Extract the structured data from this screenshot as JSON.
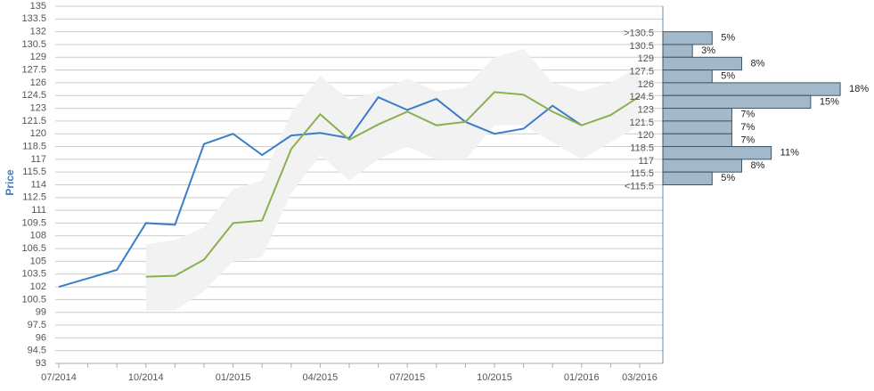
{
  "chart_data": {
    "type": "line",
    "y_label": "Price",
    "categories": [
      "07/2014",
      null,
      null,
      "10/2014",
      null,
      null,
      "01/2015",
      null,
      null,
      "04/2015",
      null,
      null,
      "07/2015",
      null,
      null,
      "10/2015",
      null,
      null,
      "01/2016",
      null,
      "03/2016"
    ],
    "series": [
      {
        "color": "#3a7dc9",
        "values": [
          102,
          103,
          104,
          109.5,
          109.3,
          118.8,
          120,
          117.5,
          119.8,
          120.1,
          119.5,
          124.3,
          122.8,
          124.1,
          121.4,
          120,
          120.6,
          123.3,
          121,
          null,
          null
        ]
      },
      {
        "color": "#8bb04f",
        "values": [
          null,
          null,
          null,
          103.2,
          103.3,
          105.2,
          109.5,
          109.8,
          118.2,
          122.3,
          119.3,
          121.1,
          122.6,
          121,
          121.4,
          124.9,
          124.6,
          122.6,
          121,
          122.2,
          124.4
        ]
      }
    ],
    "band": {
      "color": "#f2f2f2",
      "low": [
        null,
        null,
        null,
        99.2,
        99.2,
        101.5,
        105,
        105.5,
        113,
        117.5,
        114.5,
        117,
        118.5,
        117,
        117,
        121,
        121,
        119,
        117,
        119,
        121
      ],
      "high": [
        null,
        null,
        null,
        107,
        107.5,
        109,
        113.5,
        114.5,
        122.5,
        126.8,
        124,
        125,
        126.5,
        125,
        125.5,
        129,
        130,
        126,
        125,
        126,
        128
      ]
    },
    "ylim": [
      93,
      135
    ],
    "yticks": [
      93,
      94.5,
      96,
      97.5,
      99,
      100.5,
      102,
      103.5,
      105,
      106.5,
      108,
      109.5,
      111,
      112.5,
      114,
      115.5,
      117,
      118.5,
      120,
      121.5,
      123,
      124.5,
      126,
      127.5,
      129,
      130.5,
      132,
      133.5,
      135
    ],
    "grid": true,
    "histogram": {
      "color": "#a3b9c9",
      "categories": [
        ">130.5",
        "130.5",
        "129",
        "127.5",
        "126",
        "124.5",
        "123",
        "121.5",
        "120",
        "118.5",
        "117",
        "115.5",
        "<115.5"
      ],
      "values": [
        5,
        3,
        8,
        5,
        18,
        15,
        7,
        7,
        7,
        11,
        8,
        5,
        null
      ],
      "value_labels": [
        "5%",
        "3%",
        "8%",
        "5%",
        "18%",
        "15%",
        "7%",
        "7%",
        "7%",
        "11%",
        "8%",
        "5%",
        null
      ]
    }
  }
}
